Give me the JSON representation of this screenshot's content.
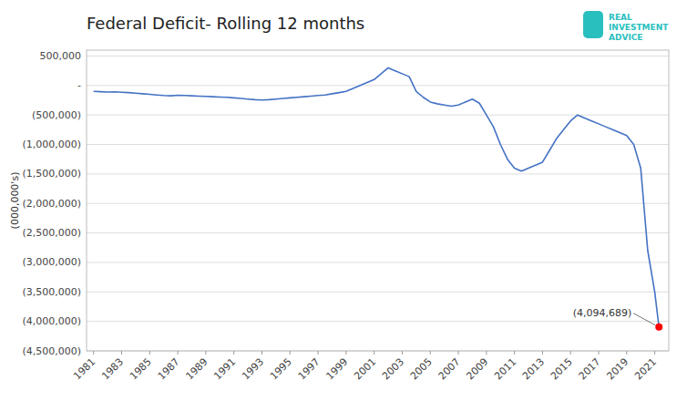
{
  "chart_data": {
    "type": "line",
    "title": "Federal Deficit- Rolling 12 months",
    "ylabel": "(000,000's)",
    "color": "#4472C4",
    "grid": true,
    "xlim": [
      1980.5,
      2022
    ],
    "xticks": [
      1981,
      1983,
      1985,
      1987,
      1989,
      1991,
      1993,
      1995,
      1997,
      1999,
      2001,
      2003,
      2005,
      2007,
      2009,
      2011,
      2013,
      2015,
      2017,
      2019,
      2021
    ],
    "ylim": [
      -4500000,
      600000
    ],
    "yticks": [
      {
        "value": 500000,
        "label": "500,000"
      },
      {
        "value": 0,
        "label": "-"
      },
      {
        "value": -500000,
        "label": "(500,000)"
      },
      {
        "value": -1000000,
        "label": "(1,000,000)"
      },
      {
        "value": -1500000,
        "label": "(1,500,000)"
      },
      {
        "value": -2000000,
        "label": "(2,000,000)"
      },
      {
        "value": -2500000,
        "label": "(2,500,000)"
      },
      {
        "value": -3000000,
        "label": "(3,000,000)"
      },
      {
        "value": -3500000,
        "label": "(3,500,000)"
      },
      {
        "value": -4000000,
        "label": "(4,000,000)"
      },
      {
        "value": -4500000,
        "label": "(4,500,000)"
      }
    ],
    "x": [
      1981,
      1981.5,
      1982,
      1982.5,
      1983,
      1983.5,
      1984,
      1984.5,
      1985,
      1985.5,
      1986,
      1986.5,
      1987,
      1987.5,
      1988,
      1988.5,
      1989,
      1989.5,
      1990,
      1990.5,
      1991,
      1991.5,
      1992,
      1992.5,
      1993,
      1993.5,
      1994,
      1994.5,
      1995,
      1995.5,
      1996,
      1996.5,
      1997,
      1997.5,
      1998,
      1998.5,
      1999,
      1999.5,
      2000,
      2000.5,
      2001,
      2001.5,
      2002,
      2002.5,
      2003,
      2003.5,
      2004,
      2004.5,
      2005,
      2005.5,
      2006,
      2006.5,
      2007,
      2007.5,
      2008,
      2008.5,
      2009,
      2009.5,
      2010,
      2010.5,
      2011,
      2011.5,
      2012,
      2012.5,
      2013,
      2013.5,
      2014,
      2014.5,
      2015,
      2015.5,
      2016,
      2016.5,
      2017,
      2017.5,
      2018,
      2018.5,
      2019,
      2019.5,
      2020,
      2020.5,
      2021,
      2021.3
    ],
    "values": [
      -100000,
      -105000,
      -110000,
      -108000,
      -115000,
      -120000,
      -130000,
      -140000,
      -150000,
      -160000,
      -170000,
      -175000,
      -165000,
      -170000,
      -175000,
      -180000,
      -185000,
      -190000,
      -195000,
      -200000,
      -210000,
      -220000,
      -230000,
      -240000,
      -245000,
      -240000,
      -230000,
      -220000,
      -210000,
      -200000,
      -190000,
      -180000,
      -170000,
      -160000,
      -140000,
      -120000,
      -100000,
      -50000,
      0,
      50000,
      100000,
      200000,
      300000,
      250000,
      200000,
      150000,
      -100000,
      -200000,
      -280000,
      -310000,
      -330000,
      -350000,
      -330000,
      -280000,
      -230000,
      -300000,
      -500000,
      -700000,
      -1000000,
      -1250000,
      -1400000,
      -1450000,
      -1400000,
      -1350000,
      -1300000,
      -1100000,
      -900000,
      -750000,
      -600000,
      -500000,
      -550000,
      -600000,
      -650000,
      -700000,
      -750000,
      -800000,
      -850000,
      -1000000,
      -1400000,
      -2800000,
      -3500000,
      -4094689
    ],
    "annotations": [
      {
        "text": "(4,094,689)",
        "x": 2021.3,
        "y": -4094689,
        "color": "#FF0000"
      },
      {
        "text": "REAL",
        "color": "#2abfbf"
      },
      {
        "text": "INVESTMENT",
        "color": "#2abfbf"
      },
      {
        "text": "ADVICE",
        "color": "#2abfbf"
      }
    ]
  }
}
